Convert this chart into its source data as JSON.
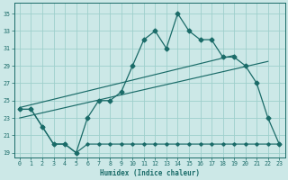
{
  "xlabel": "Humidex (Indice chaleur)",
  "bg_color": "#cce8e7",
  "line_color": "#1a6b68",
  "grid_color": "#9ecfcc",
  "xlim": [
    -0.5,
    23.5
  ],
  "ylim": [
    18.5,
    36.2
  ],
  "xticks": [
    0,
    1,
    2,
    3,
    4,
    5,
    6,
    7,
    8,
    9,
    10,
    11,
    12,
    13,
    14,
    15,
    16,
    17,
    18,
    19,
    20,
    21,
    22,
    23
  ],
  "yticks": [
    19,
    21,
    23,
    25,
    27,
    29,
    31,
    33,
    35
  ],
  "main_x": [
    0,
    1,
    2,
    3,
    4,
    5,
    6,
    7,
    8,
    9,
    10,
    11,
    12,
    13,
    14,
    15,
    16,
    17,
    18,
    19,
    20,
    21,
    22,
    23
  ],
  "main_y": [
    24,
    24,
    22,
    20,
    20,
    19,
    23,
    25,
    25,
    26,
    29,
    32,
    33,
    31,
    35,
    33,
    32,
    32,
    30,
    30,
    29,
    27,
    23,
    20
  ],
  "bot_x": [
    0,
    1,
    2,
    3,
    4,
    5,
    6,
    7,
    8,
    9,
    10,
    11,
    12,
    13,
    14,
    15,
    16,
    17,
    18,
    19,
    20,
    21,
    22,
    23
  ],
  "bot_y": [
    24,
    24,
    22,
    20,
    20,
    19,
    20,
    20,
    20,
    20,
    20,
    20,
    20,
    20,
    20,
    20,
    20,
    20,
    20,
    20,
    20,
    20,
    20,
    20
  ],
  "trend1_x": [
    0,
    19
  ],
  "trend1_y": [
    24.2,
    30.2
  ],
  "trend2_x": [
    0,
    22
  ],
  "trend2_y": [
    23.0,
    29.5
  ]
}
